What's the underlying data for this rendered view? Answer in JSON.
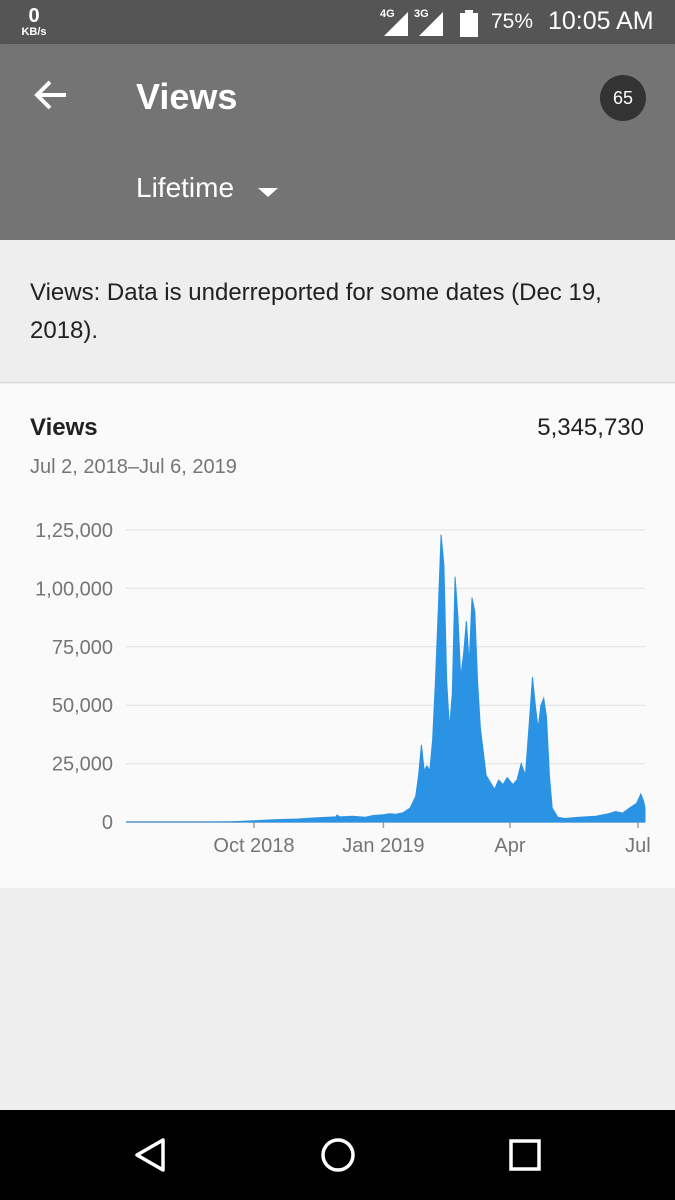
{
  "status_bar": {
    "net_speed_value": "0",
    "net_speed_unit": "KB/s",
    "signal_1": "4G",
    "signal_2": "3G",
    "battery_percent": "75%",
    "time": "10:05 AM"
  },
  "app_bar": {
    "title": "Views",
    "badge_count": "65",
    "range_label": "Lifetime",
    "back_icon": "arrow-back-icon",
    "dropdown_icon": "caret-down-icon"
  },
  "notice": {
    "text": "Views: Data is underreported for some dates (Dec 19, 2018)."
  },
  "card": {
    "metric_label": "Views",
    "total_value": "5,345,730",
    "date_range": "Jul 2, 2018–Jul 6, 2019"
  },
  "colors": {
    "status_bar": "#555555",
    "app_bar": "#747474",
    "badge": "#333333",
    "chart_fill": "#2b93e3",
    "gridline": "#e0e0e0"
  },
  "nav_bar": {
    "back_icon": "triangle-back-icon",
    "home_icon": "circle-home-icon",
    "recents_icon": "square-recents-icon"
  },
  "chart_data": {
    "type": "area",
    "title": "",
    "xlabel": "",
    "ylabel": "",
    "ylim": [
      0,
      125000
    ],
    "y_ticks": [
      0,
      25000,
      50000,
      75000,
      100000,
      125000
    ],
    "y_tick_labels": [
      "0",
      "25,000",
      "50,000",
      "75,000",
      "1,00,000",
      "1,25,000"
    ],
    "x_tick_labels": [
      "Oct 2018",
      "Jan 2019",
      "Apr",
      "Jul"
    ],
    "x_tick_dates": [
      "2018-10-01",
      "2019-01-01",
      "2019-04-01",
      "2019-07-01"
    ],
    "x_range": [
      "2018-07-02",
      "2019-07-06"
    ],
    "grid": true,
    "series": [
      {
        "values": [
          [
            "2018-07-02",
            0
          ],
          [
            "2018-08-01",
            0
          ],
          [
            "2018-09-01",
            0
          ],
          [
            "2018-09-15",
            100
          ],
          [
            "2018-10-01",
            500
          ],
          [
            "2018-10-15",
            1000
          ],
          [
            "2018-11-01",
            1300
          ],
          [
            "2018-11-15",
            1800
          ],
          [
            "2018-11-28",
            2200
          ],
          [
            "2018-11-29",
            3000
          ],
          [
            "2018-12-01",
            2200
          ],
          [
            "2018-12-10",
            2500
          ],
          [
            "2018-12-19",
            2000
          ],
          [
            "2018-12-25",
            2800
          ],
          [
            "2019-01-01",
            3100
          ],
          [
            "2019-01-05",
            3500
          ],
          [
            "2019-01-10",
            3300
          ],
          [
            "2019-01-15",
            4000
          ],
          [
            "2019-01-20",
            6000
          ],
          [
            "2019-01-24",
            11000
          ],
          [
            "2019-01-26",
            20000
          ],
          [
            "2019-01-28",
            33000
          ],
          [
            "2019-01-30",
            22000
          ],
          [
            "2019-02-01",
            24000
          ],
          [
            "2019-02-03",
            22000
          ],
          [
            "2019-02-05",
            35000
          ],
          [
            "2019-02-07",
            60000
          ],
          [
            "2019-02-09",
            90000
          ],
          [
            "2019-02-11",
            123000
          ],
          [
            "2019-02-13",
            110000
          ],
          [
            "2019-02-15",
            60000
          ],
          [
            "2019-02-17",
            40000
          ],
          [
            "2019-02-19",
            55000
          ],
          [
            "2019-02-21",
            105000
          ],
          [
            "2019-02-23",
            88000
          ],
          [
            "2019-02-25",
            62000
          ],
          [
            "2019-02-27",
            72000
          ],
          [
            "2019-03-01",
            86000
          ],
          [
            "2019-03-03",
            68000
          ],
          [
            "2019-03-05",
            96000
          ],
          [
            "2019-03-07",
            90000
          ],
          [
            "2019-03-09",
            60000
          ],
          [
            "2019-03-11",
            40000
          ],
          [
            "2019-03-13",
            30000
          ],
          [
            "2019-03-15",
            20000
          ],
          [
            "2019-03-18",
            17000
          ],
          [
            "2019-03-21",
            14000
          ],
          [
            "2019-03-24",
            18000
          ],
          [
            "2019-03-27",
            16000
          ],
          [
            "2019-03-30",
            19000
          ],
          [
            "2019-04-03",
            16000
          ],
          [
            "2019-04-06",
            18000
          ],
          [
            "2019-04-09",
            25000
          ],
          [
            "2019-04-12",
            20000
          ],
          [
            "2019-04-15",
            45000
          ],
          [
            "2019-04-17",
            62000
          ],
          [
            "2019-04-19",
            50000
          ],
          [
            "2019-04-21",
            40000
          ],
          [
            "2019-04-23",
            50000
          ],
          [
            "2019-04-25",
            53000
          ],
          [
            "2019-04-27",
            45000
          ],
          [
            "2019-04-29",
            20000
          ],
          [
            "2019-05-01",
            6000
          ],
          [
            "2019-05-05",
            2000
          ],
          [
            "2019-05-10",
            1500
          ],
          [
            "2019-05-20",
            2000
          ],
          [
            "2019-06-01",
            2500
          ],
          [
            "2019-06-10",
            3500
          ],
          [
            "2019-06-15",
            4500
          ],
          [
            "2019-06-20",
            3800
          ],
          [
            "2019-06-25",
            6000
          ],
          [
            "2019-06-30",
            8000
          ],
          [
            "2019-07-03",
            12000
          ],
          [
            "2019-07-05",
            9000
          ],
          [
            "2019-07-06",
            6000
          ]
        ]
      }
    ]
  }
}
